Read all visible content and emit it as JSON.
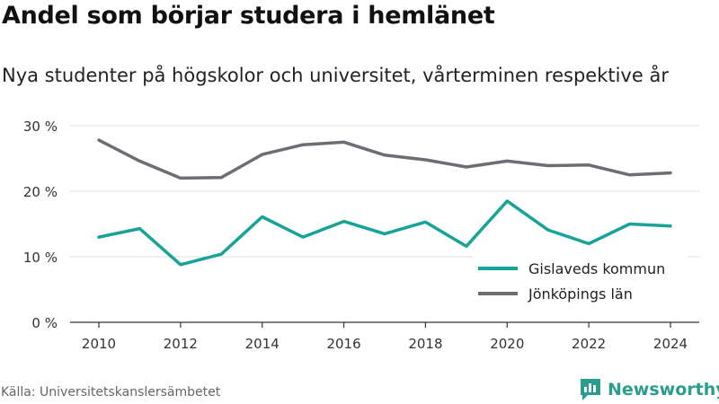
{
  "title": "Andel som börjar studera i hemlänet",
  "subtitle": "Nya studenter på högskolor och universitet, vårterminen respektive år",
  "source": "Källa: Universitetskanslersämbetet",
  "brand": {
    "name": "Newsworthy",
    "color": "#2a9d8f"
  },
  "chart_data": {
    "type": "line",
    "x": [
      2010,
      2011,
      2012,
      2013,
      2014,
      2015,
      2016,
      2017,
      2018,
      2019,
      2020,
      2021,
      2022,
      2023,
      2024
    ],
    "xticks": [
      2010,
      2012,
      2014,
      2016,
      2018,
      2020,
      2022,
      2024
    ],
    "ylim": [
      0,
      30
    ],
    "yticks": [
      0,
      10,
      20,
      30
    ],
    "ytick_labels": [
      "0 %",
      "10 %",
      "20 %",
      "30 %"
    ],
    "grid": true,
    "legend_position": "lower-right",
    "series": [
      {
        "name": "Gislaveds kommun",
        "color": "#17a398",
        "values": [
          13.0,
          14.3,
          8.8,
          10.4,
          16.1,
          13.0,
          15.4,
          13.5,
          15.3,
          11.6,
          18.5,
          14.1,
          12.0,
          15.0,
          14.7
        ]
      },
      {
        "name": "Jönköpings län",
        "color": "#6e6d74",
        "values": [
          27.8,
          24.6,
          22.0,
          22.1,
          25.6,
          27.1,
          27.5,
          25.5,
          24.8,
          23.7,
          24.6,
          23.9,
          24.0,
          22.5,
          22.8
        ]
      }
    ]
  }
}
